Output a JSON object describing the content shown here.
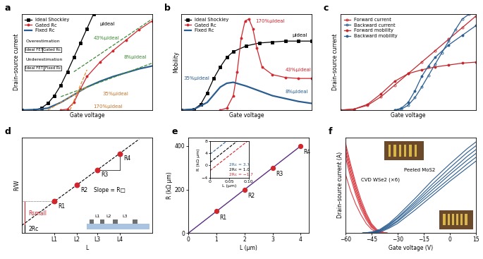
{
  "chart_data": [
    {
      "panel": "a",
      "type": "line",
      "x_label": "Gate voltage",
      "y_label": "Drain–source current",
      "xlim": [
        0,
        1
      ],
      "ylim": [
        0,
        1
      ],
      "xticks": [],
      "yticks": [],
      "tick_labels": false,
      "legend": "upper left",
      "series": [
        {
          "name": "Ideal Shockley",
          "color": "#000000",
          "marker": "square",
          "line_style": "solid",
          "x": [
            0,
            0.1,
            0.15,
            0.2,
            0.25,
            0.3,
            0.35,
            0.4,
            0.45,
            0.5,
            0.55
          ],
          "values": [
            0,
            0,
            0.02,
            0.07,
            0.15,
            0.26,
            0.4,
            0.55,
            0.7,
            0.85,
            1.0
          ]
        },
        {
          "name": "Gated Rc",
          "color": "#d0262d",
          "marker": "circle",
          "line_style": "solid",
          "x": [
            0.3,
            0.35,
            0.4,
            0.45,
            0.5,
            0.6,
            0.7,
            0.8,
            0.9,
            1.0
          ],
          "values": [
            0,
            0.01,
            0.08,
            0.22,
            0.35,
            0.5,
            0.62,
            0.73,
            0.84,
            0.93
          ]
        },
        {
          "name": "Fixed Rc",
          "color": "#2a5d8f",
          "marker": "none",
          "line_style": "solid",
          "x": [
            0,
            0.1,
            0.2,
            0.3,
            0.4,
            0.5,
            0.6,
            0.7,
            0.8,
            0.9,
            1.0
          ],
          "values": [
            0,
            0.005,
            0.02,
            0.08,
            0.16,
            0.24,
            0.3,
            0.35,
            0.39,
            0.43,
            0.46
          ]
        },
        {
          "color": "#3d8b37",
          "line_style": "dashed",
          "x": [
            0.4,
            1.0
          ],
          "values": [
            0.4,
            0.95
          ]
        },
        {
          "color": "#3d8b37",
          "line_style": "dashed",
          "x": [
            0.3,
            1.0
          ],
          "values": [
            0.14,
            0.49
          ]
        },
        {
          "color": "#e08a2c",
          "line_style": "dashed",
          "x": [
            0.37,
            0.5
          ],
          "values": [
            0,
            0.42
          ]
        },
        {
          "color": "#e08a2c",
          "line_style": "dashed",
          "x": [
            0.2,
            0.5
          ],
          "values": [
            0,
            0.24
          ]
        }
      ],
      "annotations": [
        "μideal",
        "43%μideal",
        "8%μideal",
        "35%μideal",
        "170%μideal"
      ],
      "schematic": {
        "top_label": "Overestimation",
        "top_left": "Ideal FET",
        "top_right": "Gated Rc",
        "bottom_label": "Underestimation",
        "bottom_left": "Ideal FET",
        "bottom_right": "Fixed Rc"
      }
    },
    {
      "panel": "b",
      "type": "line",
      "x_label": "Gate voltage",
      "y_label": "Mobility",
      "xlim": [
        0,
        1
      ],
      "ylim": [
        0,
        1
      ],
      "xticks": [],
      "yticks": [],
      "tick_labels": false,
      "legend": "upper left",
      "series": [
        {
          "name": "Ideal Shockley",
          "color": "#000000",
          "marker": "square",
          "line_style": "solid",
          "x": [
            0,
            0.1,
            0.15,
            0.2,
            0.25,
            0.3,
            0.35,
            0.4,
            0.5,
            0.6,
            0.7,
            0.8,
            0.9,
            1.0
          ],
          "values": [
            0,
            0.01,
            0.06,
            0.18,
            0.33,
            0.45,
            0.55,
            0.61,
            0.67,
            0.7,
            0.71,
            0.72,
            0.72,
            0.72
          ]
        },
        {
          "name": "Gated Rc",
          "color": "#d0262d",
          "marker": "circle",
          "line_style": "solid",
          "x": [
            0.3,
            0.35,
            0.4,
            0.43,
            0.46,
            0.49,
            0.52,
            0.55,
            0.58,
            0.62,
            0.7,
            0.8,
            0.9,
            1.0
          ],
          "values": [
            0,
            0.02,
            0.15,
            0.4,
            0.75,
            0.93,
            0.95,
            0.85,
            0.65,
            0.45,
            0.37,
            0.34,
            0.33,
            0.33
          ]
        },
        {
          "name": "Fixed Rc",
          "color": "#2a5d8f",
          "marker": "none",
          "line_style": "solid",
          "x": [
            0,
            0.1,
            0.2,
            0.25,
            0.3,
            0.35,
            0.4,
            0.5,
            0.6,
            0.7,
            0.8,
            0.9,
            1.0
          ],
          "values": [
            0,
            0.01,
            0.08,
            0.16,
            0.24,
            0.28,
            0.29,
            0.25,
            0.2,
            0.15,
            0.12,
            0.09,
            0.07
          ]
        }
      ],
      "annotations": [
        "170%μideal",
        "μideal",
        "43%μideal",
        "35%μideal",
        "8%μideal"
      ]
    },
    {
      "panel": "c",
      "type": "line",
      "x_label": "Gate voltage",
      "y_label": "Drain–source current",
      "xlim": [
        0,
        1
      ],
      "ylim": [
        0,
        1
      ],
      "xticks": [],
      "yticks": [],
      "tick_labels": false,
      "legend": "upper left",
      "series": [
        {
          "name": "Forward current",
          "color": "#c0272d",
          "marker": "open_circle",
          "line_style": "solid",
          "x": [
            0,
            0.1,
            0.2,
            0.3,
            0.4,
            0.5,
            0.6,
            0.7,
            0.8,
            0.9,
            1.0
          ],
          "values": [
            0,
            0.01,
            0.05,
            0.14,
            0.26,
            0.38,
            0.5,
            0.62,
            0.74,
            0.86,
            0.98
          ]
        },
        {
          "name": "Backward current",
          "color": "#2a5d8f",
          "marker": "open_circle",
          "line_style": "solid",
          "x": [
            0.4,
            0.45,
            0.5,
            0.55,
            0.6,
            0.65,
            0.7,
            0.75,
            0.8,
            0.85,
            0.9,
            0.95
          ],
          "values": [
            0,
            0.01,
            0.05,
            0.13,
            0.24,
            0.36,
            0.48,
            0.6,
            0.72,
            0.84,
            0.95,
            1.0
          ]
        },
        {
          "name": "Forward mobility",
          "color": "#c0272d",
          "marker": "circle",
          "line_style": "solid",
          "x": [
            0,
            0.1,
            0.2,
            0.3,
            0.4,
            0.5,
            0.6,
            0.7,
            0.8,
            0.9,
            1.0
          ],
          "values": [
            0,
            0.01,
            0.06,
            0.17,
            0.3,
            0.38,
            0.42,
            0.45,
            0.47,
            0.49,
            0.5
          ]
        },
        {
          "name": "Backward mobility",
          "color": "#2a5d8f",
          "marker": "circle",
          "line_style": "solid",
          "x": [
            0.4,
            0.45,
            0.5,
            0.55,
            0.6,
            0.65,
            0.7,
            0.8,
            0.9,
            1.0
          ],
          "values": [
            0,
            0.02,
            0.08,
            0.2,
            0.35,
            0.46,
            0.55,
            0.68,
            0.78,
            0.88
          ]
        }
      ]
    },
    {
      "panel": "d",
      "type": "scatter",
      "x_label": "L",
      "y_label": "R/W",
      "xlim": [
        0,
        1
      ],
      "ylim": [
        0,
        1
      ],
      "xticks": [
        {
          "value": 0.25,
          "label": "L1"
        },
        {
          "value": 0.42,
          "label": "L2"
        },
        {
          "value": 0.58,
          "label": "L3"
        },
        {
          "value": 0.75,
          "label": "L4"
        }
      ],
      "yticks": [],
      "tick_labels": "x",
      "color": "#d0262d",
      "x": [
        0.25,
        0.42,
        0.58,
        0.75
      ],
      "values": [
        0.33,
        0.5,
        0.66,
        0.83
      ],
      "point_labels": [
        "R1",
        "R2",
        "R3",
        "R4"
      ],
      "fit": {
        "x": [
          0,
          0.9
        ],
        "values": [
          0.08,
          0.98
        ],
        "color": "#000000",
        "line_style": "dashed"
      },
      "slope_label": "Slope = R□",
      "small_label": "Rsmall",
      "intercept_label": "2Rc",
      "device_labels": [
        "L1",
        "L2",
        "L3"
      ]
    },
    {
      "panel": "e",
      "type": "scatter",
      "x_label": "L (μm)",
      "y_label": "R (kΩ μm)",
      "xlim": [
        0,
        4.3
      ],
      "ylim": [
        0,
        440
      ],
      "xticks": [
        0,
        1,
        2,
        3,
        4
      ],
      "yticks": [
        0,
        200,
        400
      ],
      "color": "#d0262d",
      "x": [
        1,
        2,
        3,
        4
      ],
      "values": [
        100,
        200,
        300,
        400
      ],
      "point_labels": [
        "R1",
        "R2",
        "R3",
        "R4"
      ],
      "fit": {
        "x": [
          0,
          4
        ],
        "values": [
          0,
          400
        ],
        "color": "#5b2d82",
        "line_style": "solid"
      },
      "inset": {
        "x_label": "L (μm)",
        "y_label": "R (kΩ μm)",
        "xlim": [
          0,
          0.1
        ],
        "ylim": [
          -4,
          8
        ],
        "xticks": [
          0,
          0.05,
          {
            "value": 0.1,
            "label": "0.10"
          }
        ],
        "yticks": [
          {
            "value": -4,
            "label": "−4"
          },
          0,
          4,
          8
        ],
        "series": [
          {
            "label": "2Rc = 3.7",
            "color": "#2a5d8f",
            "line_style": "dashed",
            "x": [
              0,
              0.1
            ],
            "values": [
              3.7,
              13.7
            ]
          },
          {
            "label": "2Rc = 1.0",
            "color": "#000000",
            "line_style": "dashed",
            "x": [
              0,
              0.1
            ],
            "values": [
              1.0,
              11.0
            ]
          },
          {
            "label": "2Rc = −1.7",
            "color": "#d0262d",
            "line_style": "dashed",
            "x": [
              0,
              0.1
            ],
            "values": [
              -1.7,
              8.3
            ]
          }
        ]
      }
    },
    {
      "panel": "f",
      "type": "line",
      "x_label": "Gate voltage (V)",
      "y_label": "Drain–source current (A)",
      "xlim": [
        -60,
        15
      ],
      "ylim": [
        0,
        1
      ],
      "xticks": [
        {
          "value": -60,
          "label": "−60"
        },
        {
          "value": -45,
          "label": "−45"
        },
        {
          "value": -30,
          "label": "−30"
        },
        {
          "value": -15,
          "label": "−15"
        },
        0,
        15
      ],
      "yticks": [],
      "tick_labels": "x",
      "series": [
        {
          "color": "#d9444a",
          "x": [
            -60,
            -57,
            -54,
            -51,
            -48,
            -45,
            -42,
            -39,
            -36
          ],
          "values": [
            0.95,
            0.72,
            0.52,
            0.35,
            0.21,
            0.1,
            0.04,
            0.01,
            0
          ]
        },
        {
          "color": "#d9444a",
          "x": [
            -60,
            -57,
            -54,
            -51,
            -48,
            -45,
            -42,
            -39,
            -36
          ],
          "values": [
            0.92,
            0.69,
            0.49,
            0.32,
            0.19,
            0.09,
            0.03,
            0.01,
            0
          ]
        },
        {
          "color": "#d9444a",
          "x": [
            -60,
            -57,
            -54,
            -51,
            -48,
            -45,
            -42,
            -39,
            -36
          ],
          "values": [
            0.88,
            0.65,
            0.46,
            0.3,
            0.17,
            0.08,
            0.03,
            0.01,
            0
          ]
        },
        {
          "color": "#d9444a",
          "x": [
            -60,
            -57,
            -54,
            -51,
            -48,
            -45,
            -42,
            -39,
            -36
          ],
          "values": [
            0.85,
            0.62,
            0.43,
            0.28,
            0.16,
            0.07,
            0.02,
            0,
            0
          ]
        },
        {
          "color": "#d9444a",
          "x": [
            -60,
            -57,
            -54,
            -51,
            -48,
            -45,
            -42,
            -39,
            -36
          ],
          "values": [
            0.8,
            0.58,
            0.4,
            0.25,
            0.14,
            0.06,
            0.02,
            0,
            0
          ]
        },
        {
          "color": "#d9444a",
          "x": [
            -60,
            -57,
            -54,
            -51,
            -48,
            -45,
            -42,
            -39,
            -36
          ],
          "values": [
            0.62,
            0.44,
            0.3,
            0.19,
            0.1,
            0.04,
            0.01,
            0,
            0
          ]
        },
        {
          "color": "#2a5d8f",
          "x": [
            -50,
            -45,
            -40,
            -35,
            -30,
            -20,
            -10,
            0,
            10,
            15
          ],
          "values": [
            0,
            0.01,
            0.04,
            0.1,
            0.18,
            0.36,
            0.55,
            0.72,
            0.88,
            0.95
          ]
        },
        {
          "color": "#2a5d8f",
          "x": [
            -50,
            -45,
            -40,
            -35,
            -30,
            -20,
            -10,
            0,
            10,
            15
          ],
          "values": [
            0,
            0.01,
            0.03,
            0.09,
            0.16,
            0.33,
            0.51,
            0.68,
            0.84,
            0.91
          ]
        },
        {
          "color": "#2a5d8f",
          "x": [
            -50,
            -45,
            -40,
            -35,
            -30,
            -20,
            -10,
            0,
            10,
            15
          ],
          "values": [
            0,
            0,
            0.03,
            0.08,
            0.15,
            0.31,
            0.48,
            0.64,
            0.8,
            0.87
          ]
        },
        {
          "color": "#2a5d8f",
          "x": [
            -50,
            -45,
            -40,
            -35,
            -30,
            -20,
            -10,
            0,
            10,
            15
          ],
          "values": [
            0,
            0,
            0.02,
            0.07,
            0.13,
            0.29,
            0.45,
            0.61,
            0.76,
            0.83
          ]
        },
        {
          "color": "#2a5d8f",
          "x": [
            -50,
            -45,
            -40,
            -35,
            -30,
            -20,
            -10,
            0,
            10,
            15
          ],
          "values": [
            0,
            0,
            0.02,
            0.06,
            0.12,
            0.27,
            0.42,
            0.57,
            0.72,
            0.79
          ]
        },
        {
          "color": "#2a5d8f",
          "x": [
            -50,
            -45,
            -40,
            -35,
            -30,
            -20,
            -10,
            0,
            10,
            15
          ],
          "values": [
            0,
            0,
            0.01,
            0.05,
            0.1,
            0.24,
            0.39,
            0.54,
            0.68,
            0.75
          ]
        }
      ],
      "annotations": [
        "CVD WSe2 (×6)",
        "Peeled MoS2"
      ]
    }
  ]
}
